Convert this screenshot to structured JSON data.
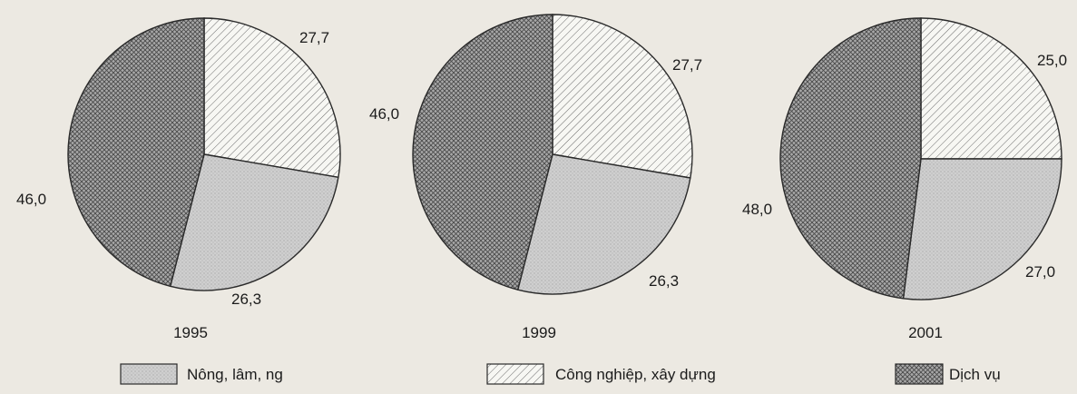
{
  "colors": {
    "background": "#ece9e2",
    "outline": "#2a2a2a",
    "nong_lam_ng_fill": "#cfcfcf",
    "cong_nghiep_fill": "#f7f7f3",
    "dich_vu_fill": "#8f8f8f"
  },
  "legend": [
    {
      "key": "nong_lam_ng",
      "label": "Nông, lâm, ng",
      "pattern": "dots"
    },
    {
      "key": "cong_nghiep",
      "label": "Công nghiệp, xây dựng",
      "pattern": "hatch"
    },
    {
      "key": "dich_vu",
      "label": "Dịch vụ",
      "pattern": "cross"
    }
  ],
  "chart_data": [
    {
      "type": "pie",
      "title": "1995",
      "slices": [
        {
          "key": "cong_nghiep",
          "value": 27.7,
          "label": "27,7"
        },
        {
          "key": "nong_lam_ng",
          "value": 26.3,
          "label": "26,3"
        },
        {
          "key": "dich_vu",
          "value": 46.0,
          "label": "46,0"
        }
      ]
    },
    {
      "type": "pie",
      "title": "1999",
      "slices": [
        {
          "key": "cong_nghiep",
          "value": 27.7,
          "label": "27,7"
        },
        {
          "key": "nong_lam_ng",
          "value": 26.3,
          "label": "26,3"
        },
        {
          "key": "dich_vu",
          "value": 46.0,
          "label": "46,0"
        }
      ]
    },
    {
      "type": "pie",
      "title": "2001",
      "slices": [
        {
          "key": "cong_nghiep",
          "value": 25.0,
          "label": "25,0"
        },
        {
          "key": "nong_lam_ng",
          "value": 27.0,
          "label": "27,0"
        },
        {
          "key": "dich_vu",
          "value": 48.0,
          "label": "48,0"
        }
      ]
    }
  ]
}
